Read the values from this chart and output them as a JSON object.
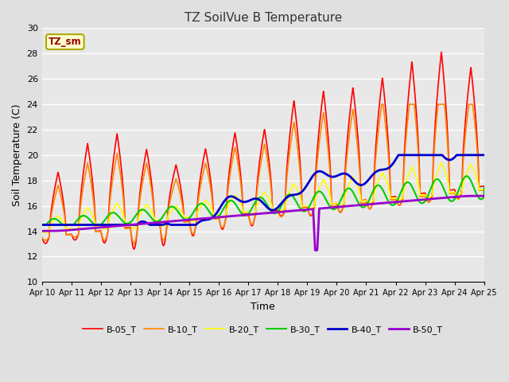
{
  "title": "TZ SoilVue B Temperature",
  "xlabel": "Time",
  "ylabel": "Soil Temperature (C)",
  "ylim": [
    10,
    30
  ],
  "xlim": [
    0,
    15
  ],
  "background_color": "#e0e0e0",
  "plot_bg_color": "#e8e8e8",
  "grid_color": "#ffffff",
  "annotation_text": "TZ_sm",
  "annotation_bg": "#ffffcc",
  "annotation_border": "#aaaa00",
  "annotation_text_color": "#990000",
  "legend_entries": [
    "B-05_T",
    "B-10_T",
    "B-20_T",
    "B-30_T",
    "B-40_T",
    "B-50_T"
  ],
  "line_colors": [
    "#ff0000",
    "#ff8800",
    "#ffff00",
    "#00cc00",
    "#0000cc",
    "#9900cc"
  ],
  "line_widths": [
    1.2,
    1.2,
    1.2,
    1.5,
    2.0,
    2.0
  ],
  "xtick_labels": [
    "Apr 10",
    "Apr 11",
    "Apr 12",
    "Apr 13",
    "Apr 14",
    "Apr 15",
    "Apr 16",
    "Apr 17",
    "Apr 18",
    "Apr 19",
    "Apr 20",
    "Apr 21",
    "Apr 22",
    "Apr 23",
    "Apr 24",
    "Apr 25"
  ],
  "ytick_values": [
    10,
    12,
    14,
    16,
    18,
    20,
    22,
    24,
    26,
    28,
    30
  ]
}
